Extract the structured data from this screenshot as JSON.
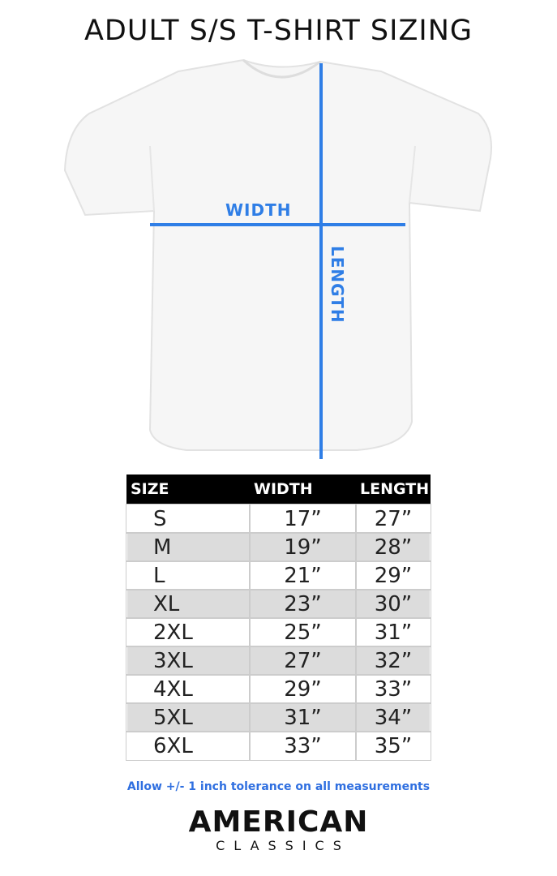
{
  "title": "ADULT S/S T-SHIRT SIZING",
  "diagram": {
    "width_label": "WIDTH",
    "length_label": "LENGTH",
    "line_color": "#2f7ee6"
  },
  "table": {
    "headers": [
      "SIZE",
      "WIDTH",
      "LENGTH"
    ],
    "rows": [
      [
        "S",
        "17”",
        "27”"
      ],
      [
        "M",
        "19”",
        "28”"
      ],
      [
        "L",
        "21”",
        "29”"
      ],
      [
        "XL",
        "23”",
        "30”"
      ],
      [
        "2XL",
        "25”",
        "31”"
      ],
      [
        "3XL",
        "27”",
        "32”"
      ],
      [
        "4XL",
        "29”",
        "33”"
      ],
      [
        "5XL",
        "31”",
        "34”"
      ],
      [
        "6XL",
        "33”",
        "35”"
      ]
    ]
  },
  "note": "Allow +/- 1 inch tolerance on all measurements",
  "brand": {
    "line1": "AMERICAN",
    "line2": "CLASSICS"
  }
}
